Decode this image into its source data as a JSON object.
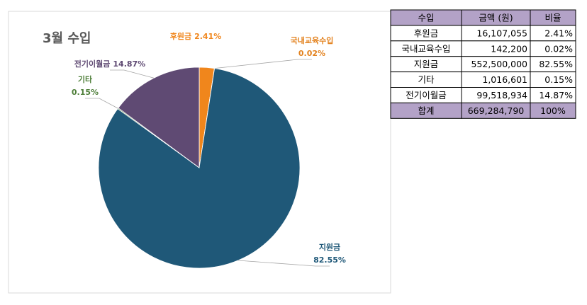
{
  "chart_data": {
    "type": "pie",
    "title": "3월 수입",
    "categories": [
      "후원금",
      "국내교육수입",
      "지원금",
      "기타",
      "전기이월금"
    ],
    "values": [
      2.41,
      0.02,
      82.55,
      0.15,
      14.87
    ],
    "value_labels": [
      "2.41%",
      "0.02%",
      "82.55%",
      "0.15%",
      "14.87%"
    ],
    "colors": [
      "#f0861c",
      "#e3821e",
      "#1f5878",
      "#4f7f3a",
      "#5f4a73"
    ]
  },
  "table": {
    "header": [
      "수입",
      "금액 (원)",
      "비율"
    ],
    "rows": [
      [
        "후원금",
        "16,107,055",
        "2.41%"
      ],
      [
        "국내교육수입",
        "142,200",
        "0.02%"
      ],
      [
        "지원금",
        "552,500,000",
        "82.55%"
      ],
      [
        "기타",
        "1,016,601",
        "0.15%"
      ],
      [
        "전기이월금",
        "99,518,934",
        "14.87%"
      ],
      [
        "합계",
        "669,284,790",
        "100%"
      ]
    ]
  }
}
